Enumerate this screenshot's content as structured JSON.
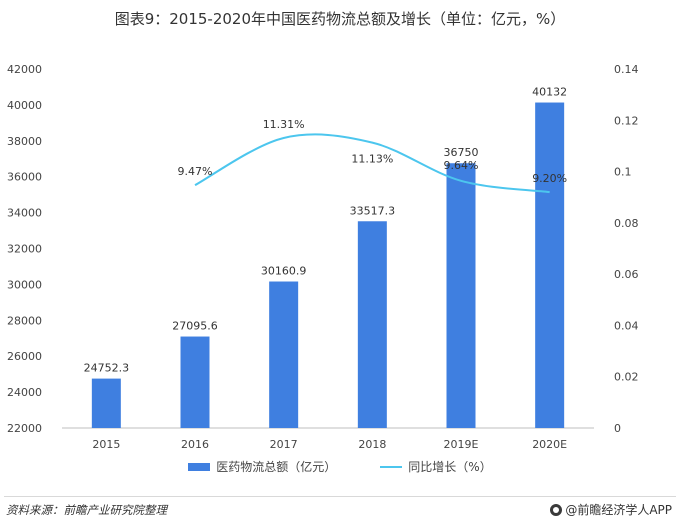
{
  "title": "图表9：2015-2020年中国医药物流总额及增长（单位：亿元，%）",
  "source": "资料来源：前瞻产业研究院整理",
  "brand": "@前瞻经济学人APP",
  "colors": {
    "bar": "#3f7fe0",
    "line": "#4cc6ee"
  },
  "chart_data": {
    "type": "bar",
    "categories": [
      "2015",
      "2016",
      "2017",
      "2018",
      "2019E",
      "2020E"
    ],
    "series": [
      {
        "name": "医药物流总额（亿元）",
        "type": "bar",
        "axis": "left",
        "values": [
          24752.3,
          27095.6,
          30160.9,
          33517.3,
          36750,
          40132
        ],
        "labels": [
          "24752.3",
          "27095.6",
          "30160.9",
          "33517.3",
          "36750",
          "40132"
        ]
      },
      {
        "name": "同比增长（%）",
        "type": "line",
        "axis": "right",
        "values": [
          null,
          0.0947,
          0.1131,
          0.1113,
          0.0964,
          0.092
        ],
        "labels": [
          "",
          "9.47%",
          "11.31%",
          "11.13%",
          "9.64%",
          "9.20%"
        ]
      }
    ],
    "y_left": {
      "min": 22000,
      "max": 42000,
      "ticks": [
        "22000",
        "24000",
        "26000",
        "28000",
        "30000",
        "32000",
        "34000",
        "36000",
        "38000",
        "40000",
        "42000"
      ]
    },
    "y_right": {
      "min": 0,
      "max": 0.14,
      "ticks": [
        "0",
        "0.02",
        "0.04",
        "0.06",
        "0.08",
        "0.1",
        "0.12",
        "0.14"
      ]
    },
    "legend": [
      "医药物流总额（亿元）",
      "同比增长（%）"
    ],
    "legend_position": "bottom"
  }
}
